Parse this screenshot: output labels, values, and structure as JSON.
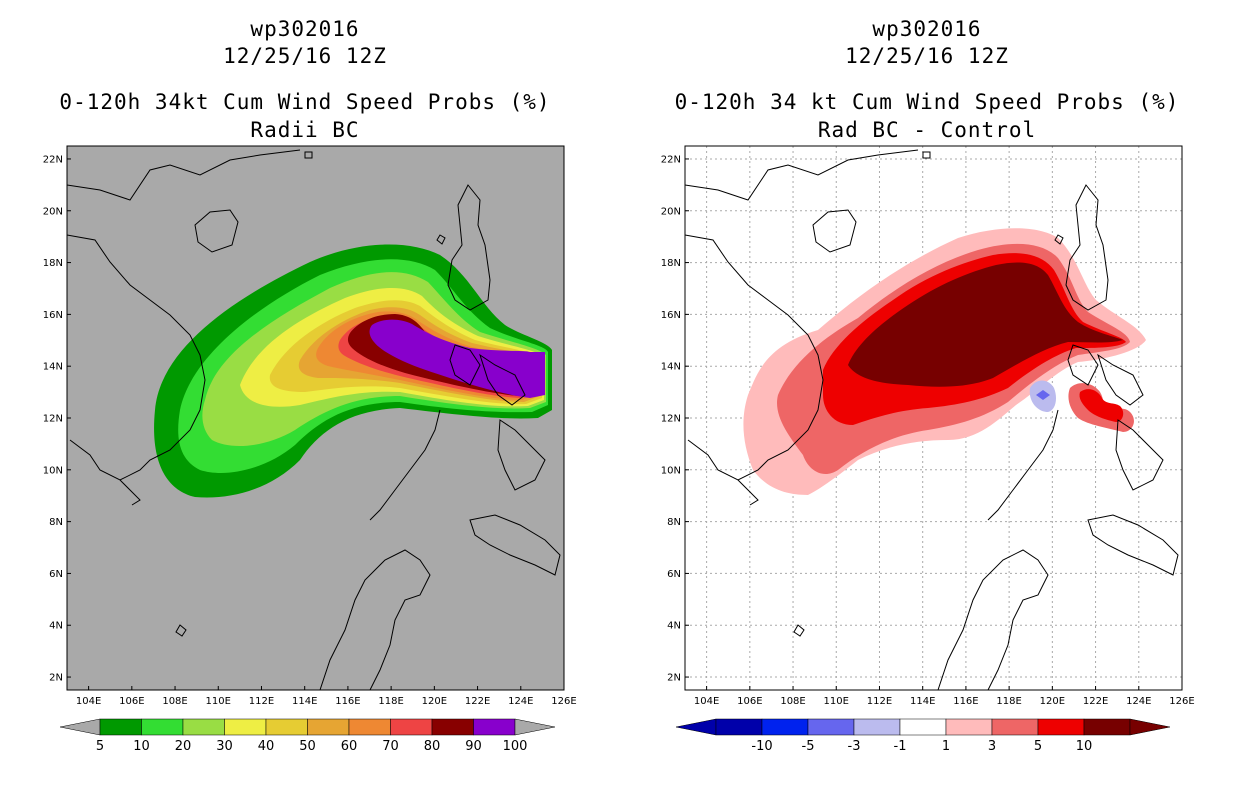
{
  "left": {
    "title_storm": "wp302016",
    "title_date": "12/25/16 12Z",
    "title_product": "0-120h 34kt Cum Wind Speed Probs (%)",
    "title_subtitle": "Radii BC",
    "background_color": "#a9a9a9",
    "colorbar": {
      "colors": [
        "#009900",
        "#33dd33",
        "#99dd44",
        "#eeee44",
        "#e6cc33",
        "#e6a533",
        "#ee8833",
        "#ee4444",
        "#880000",
        "#8800cc"
      ],
      "labels": [
        "5",
        "10",
        "20",
        "30",
        "40",
        "50",
        "60",
        "70",
        "80",
        "90",
        "100"
      ]
    }
  },
  "right": {
    "title_storm": "wp302016",
    "title_date": "12/25/16 12Z",
    "title_product": "0-120h 34 kt Cum Wind Speed Probs (%)",
    "title_subtitle": "Rad BC - Control",
    "background_color": "#ffffff",
    "colorbar": {
      "colors": [
        "#0000aa",
        "#0022ee",
        "#6666ee",
        "#bbbbee",
        "#ffffff",
        "#ffbbbb",
        "#ee6666",
        "#ee0000",
        "#770000"
      ],
      "labels": [
        "-10",
        "-5",
        "-3",
        "-1",
        "1",
        "3",
        "5",
        "10"
      ]
    }
  },
  "axes": {
    "lat_labels": [
      "22N",
      "20N",
      "18N",
      "16N",
      "14N",
      "12N",
      "10N",
      "8N",
      "6N",
      "4N",
      "2N"
    ],
    "lon_labels": [
      "104E",
      "106E",
      "108E",
      "110E",
      "112E",
      "114E",
      "116E",
      "118E",
      "120E",
      "122E",
      "124E",
      "126E"
    ],
    "lon_range": [
      103,
      126
    ],
    "lat_range": [
      1.5,
      22.5
    ]
  }
}
